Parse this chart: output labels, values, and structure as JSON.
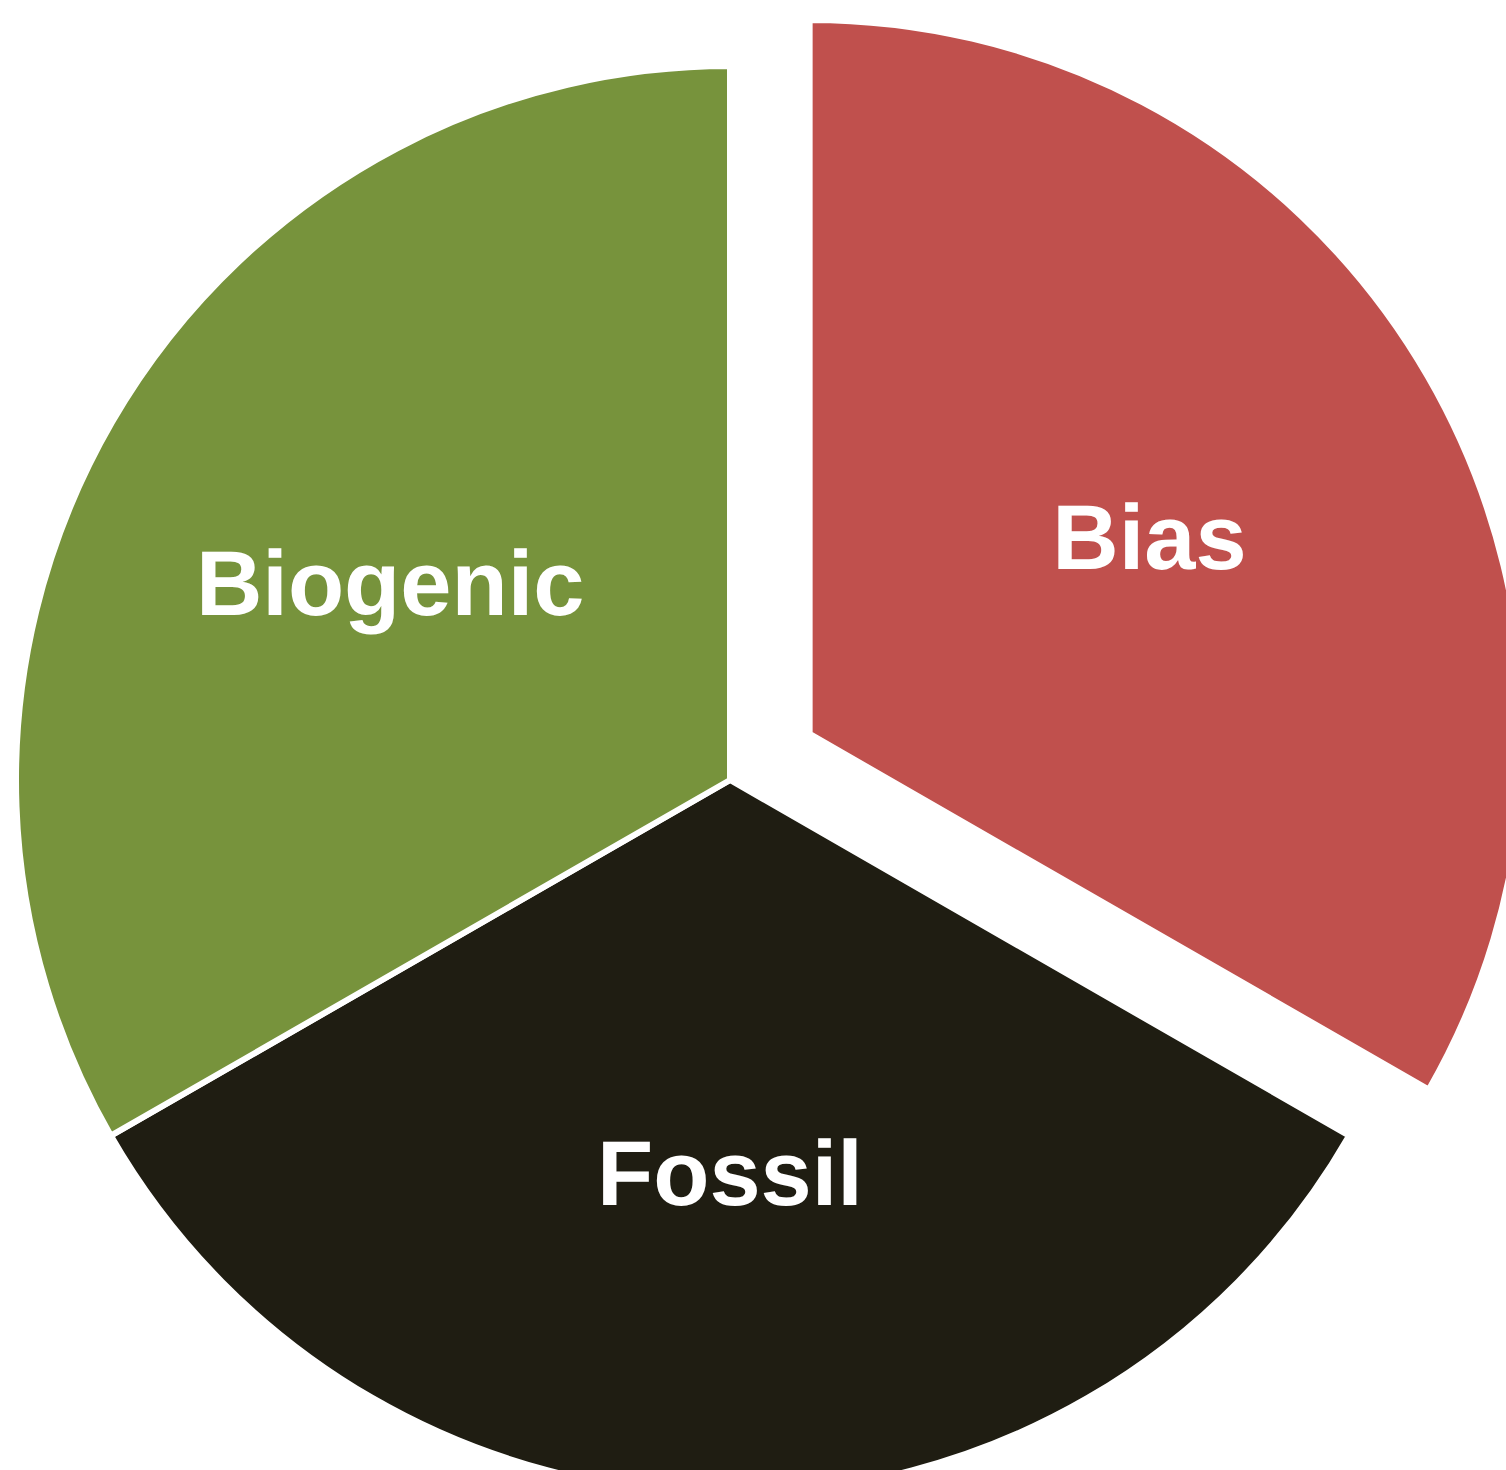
{
  "chart_data": {
    "type": "pie",
    "categories": [
      "Bias",
      "Fossil",
      "Biogenic"
    ],
    "values": [
      33.3,
      33.4,
      33.3
    ],
    "colors": [
      "#c0504d",
      "#1f1d12",
      "#77933c"
    ]
  }
}
